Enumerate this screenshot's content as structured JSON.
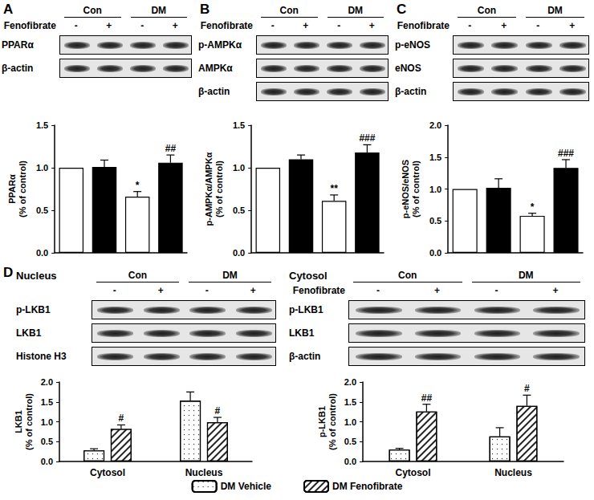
{
  "panels": [
    {
      "letter": "A",
      "blots": [
        {
          "groups": [
            "Con",
            "DM"
          ],
          "treatment": "Fenofibrate",
          "signs": [
            "-",
            "+",
            "-",
            "+"
          ],
          "rows": [
            "PPARα",
            "β-actin"
          ]
        }
      ]
    },
    {
      "letter": "B",
      "blots": [
        {
          "groups": [
            "Con",
            "DM"
          ],
          "treatment": "Fenofibrate",
          "signs": [
            "-",
            "+",
            "-",
            "+"
          ],
          "rows": [
            "p-AMPKα",
            "AMPKα",
            "β-actin"
          ]
        }
      ]
    },
    {
      "letter": "C",
      "blots": [
        {
          "groups": [
            "Con",
            "DM"
          ],
          "treatment": "Fenofibrate",
          "signs": [
            "-",
            "+",
            "-",
            "+"
          ],
          "rows": [
            "p-eNOS",
            "eNOS",
            "β-actin"
          ]
        }
      ]
    },
    {
      "letter": "D",
      "blots": [
        {
          "title": "Nucleus",
          "groups": [
            "Con",
            "DM"
          ],
          "signs": [
            "-",
            "+",
            "-",
            "+"
          ],
          "rows": [
            "p-LKB1",
            "LKB1",
            "Histone H3"
          ]
        },
        {
          "title": "Cytosol",
          "groups": [
            "Con",
            "DM"
          ],
          "treatment": "Fenofibrate",
          "signs": [
            "-",
            "+",
            "-",
            "+"
          ],
          "rows": [
            "p-LKB1",
            "LKB1",
            "β-actin"
          ]
        }
      ]
    }
  ],
  "chart_data": [
    {
      "type": "bar",
      "categories": [
        null,
        null,
        null,
        null
      ],
      "values": [
        1.0,
        1.01,
        0.66,
        1.06
      ],
      "errors": [
        null,
        0.08,
        0.06,
        0.09
      ],
      "significance": [
        null,
        null,
        "*",
        "##"
      ],
      "colors": [
        "#ffffff",
        "#000000",
        "#ffffff",
        "#000000"
      ],
      "ylabel": "PPARα\n(% of control)",
      "ylim": [
        0,
        1.5
      ],
      "yticks": [
        {
          "value": 0,
          "label": "0.0"
        },
        0.5,
        {
          "value": 1,
          "label": "1.0"
        },
        1.5
      ],
      "grid": false,
      "tick_labels": "y"
    },
    {
      "type": "bar",
      "categories": [
        null,
        null,
        null,
        null
      ],
      "values": [
        1.0,
        1.1,
        0.61,
        1.18
      ],
      "errors": [
        null,
        0.05,
        0.07,
        0.09
      ],
      "significance": [
        null,
        null,
        "**",
        "###"
      ],
      "colors": [
        "#ffffff",
        "#000000",
        "#ffffff",
        "#000000"
      ],
      "ylabel": "p-AMPKα/AMPKα\n(% of control)",
      "ylim": [
        0,
        1.5
      ],
      "yticks": [
        {
          "value": 0,
          "label": "0.0"
        },
        0.5,
        {
          "value": 1,
          "label": "1.0"
        },
        1.5
      ],
      "grid": false,
      "tick_labels": "y"
    },
    {
      "type": "bar",
      "categories": [
        null,
        null,
        null,
        null
      ],
      "values": [
        1.0,
        1.02,
        0.58,
        1.33
      ],
      "errors": [
        null,
        0.14,
        0.04,
        0.13
      ],
      "significance": [
        null,
        null,
        "*",
        "###"
      ],
      "colors": [
        "#ffffff",
        "#000000",
        "#ffffff",
        "#000000"
      ],
      "ylabel": "p-eNOS/eNOS\n(% of control)",
      "ylim": [
        0,
        2
      ],
      "yticks": [
        {
          "value": 0,
          "label": "0.0"
        },
        0.5,
        {
          "value": 1,
          "label": "1.0"
        },
        1.5,
        {
          "value": 2,
          "label": "2.0"
        }
      ],
      "grid": false,
      "tick_labels": "y"
    },
    {
      "type": "bar",
      "categories": [
        "Cytosol",
        "Nucleus"
      ],
      "series": [
        {
          "name": "DM Vehicle",
          "color": "#ffffff",
          "values": [
            0.28,
            1.53
          ],
          "errors": [
            0.04,
            0.22
          ]
        },
        {
          "name": "DM Fenofibrate",
          "color": "#ffffff",
          "values": [
            0.82,
            0.99
          ],
          "errors": [
            0.1,
            0.12
          ],
          "significance": [
            "#",
            "#"
          ]
        }
      ],
      "ylabel": "LKB1\n(% of control)",
      "ylim": [
        0,
        2
      ],
      "yticks": [
        {
          "value": 0,
          "label": "0.0"
        },
        0.5,
        {
          "value": 1,
          "label": "1.0"
        },
        1.5,
        {
          "value": 2,
          "label": "2.0"
        }
      ],
      "grid": false,
      "legend": "bottom"
    },
    {
      "type": "bar",
      "categories": [
        "Cytosol",
        "Nucleus"
      ],
      "series": [
        {
          "name": "DM Vehicle",
          "color": "#ffffff",
          "values": [
            0.3,
            0.63
          ],
          "errors": [
            0.03,
            0.22
          ]
        },
        {
          "name": "DM Fenofibrate",
          "color": "#ffffff",
          "values": [
            1.26,
            1.4
          ],
          "errors": [
            0.18,
            0.27
          ],
          "significance": [
            "##",
            "#"
          ]
        }
      ],
      "ylabel": "p-LKB1\n(% of control)",
      "ylim": [
        0,
        2
      ],
      "yticks": [
        {
          "value": 0,
          "label": "0.0"
        },
        0.5,
        {
          "value": 1,
          "label": "1.0"
        },
        1.5,
        {
          "value": 2,
          "label": "2.0"
        }
      ],
      "grid": false,
      "legend": "bottom"
    }
  ]
}
